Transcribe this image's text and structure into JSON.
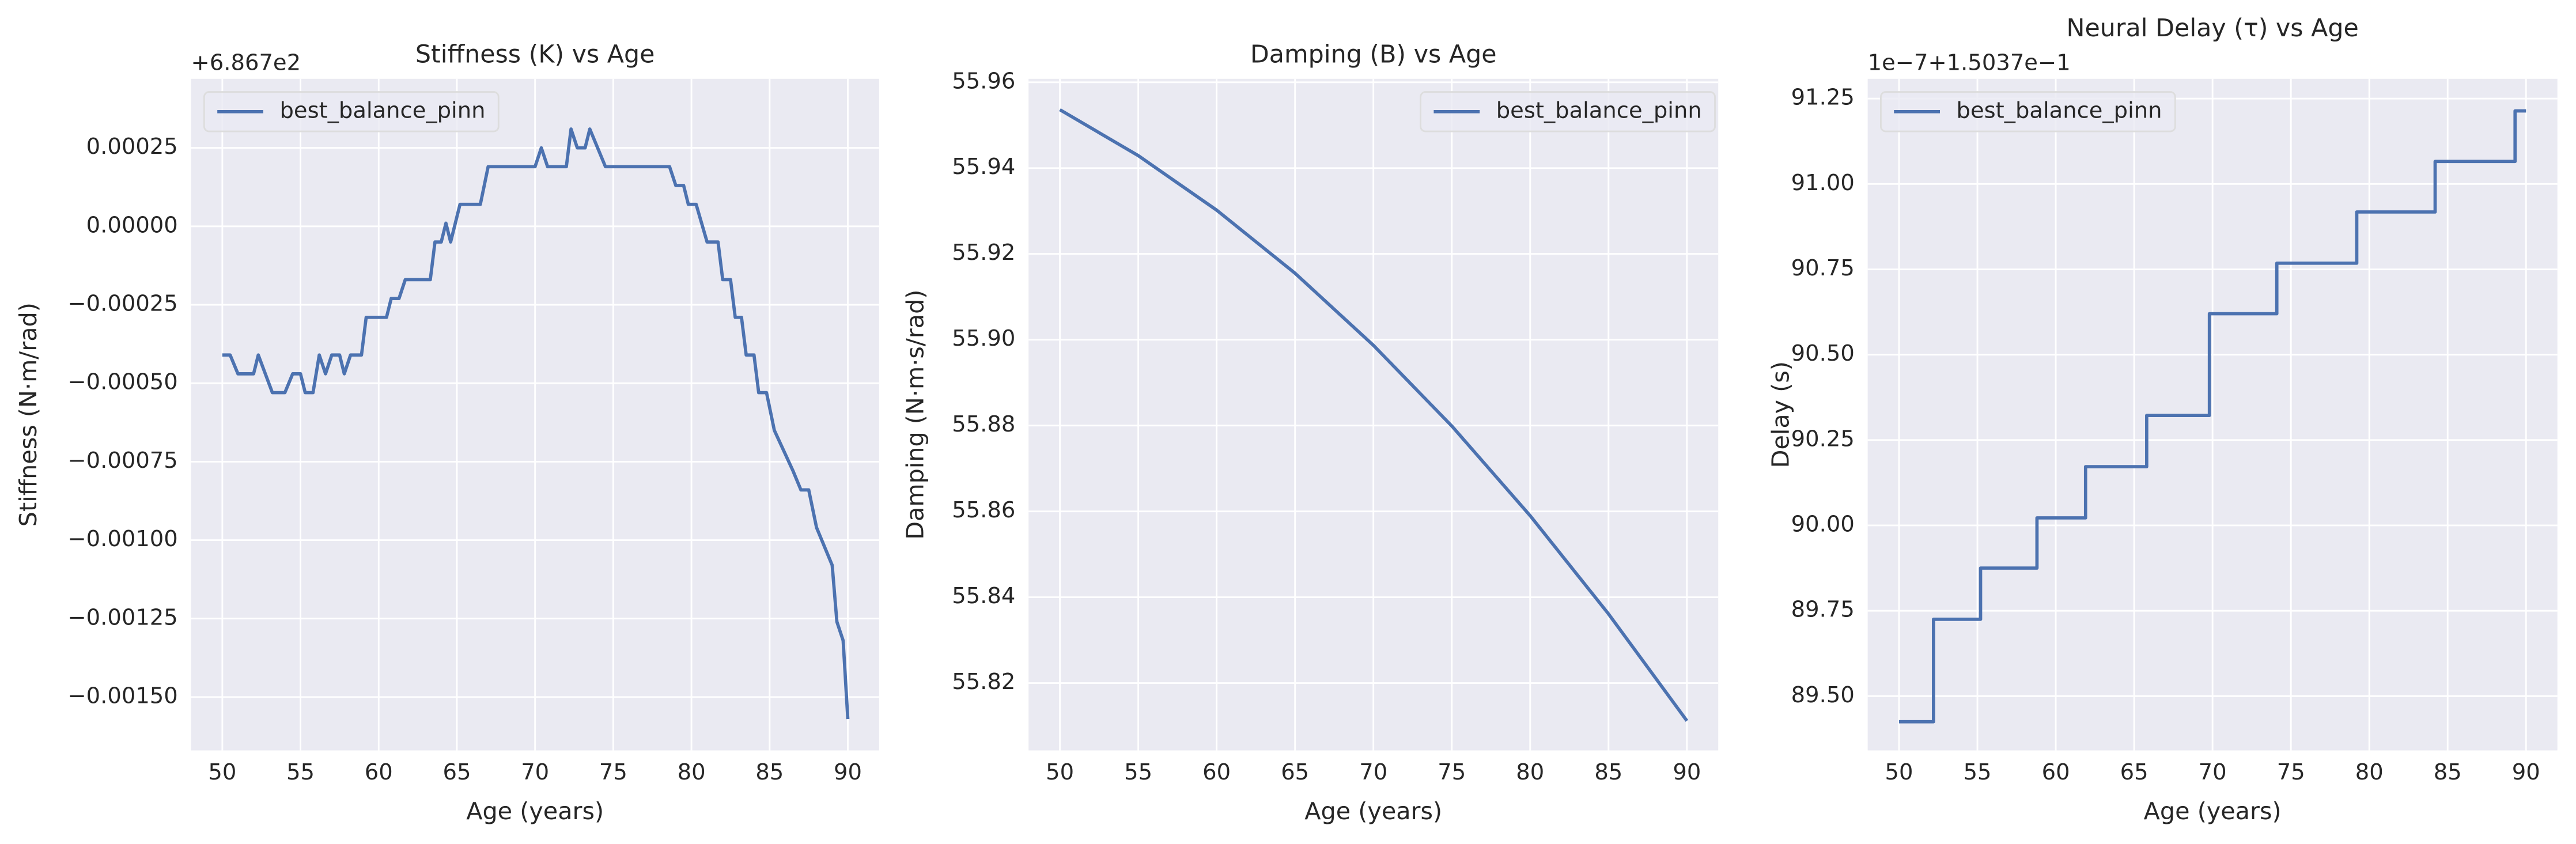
{
  "chart_data": [
    {
      "type": "line",
      "title": "Stiffness (K) vs Age",
      "xlabel": "Age (years)",
      "ylabel": "Stiffness (N·m/rad)",
      "offset_text": "+6.867e2",
      "x": [
        50,
        50.5,
        51,
        52,
        52.3,
        53.2,
        54,
        54.5,
        55,
        55.3,
        55.8,
        56.2,
        56.6,
        57,
        57.5,
        57.8,
        58.2,
        58.9,
        59.2,
        60.5,
        60.8,
        61.3,
        61.7,
        63.3,
        63.6,
        64,
        64.3,
        64.6,
        65.2,
        66.5,
        67,
        70,
        70.4,
        70.8,
        72,
        72.3,
        72.7,
        73.2,
        73.5,
        74.5,
        78.6,
        79,
        79.5,
        79.8,
        80.3,
        81,
        81.7,
        82,
        82.5,
        82.8,
        83.2,
        83.5,
        84,
        84.3,
        84.8,
        85.3,
        86.5,
        87,
        87.5,
        88,
        89,
        89.3,
        89.7,
        90
      ],
      "series": [
        {
          "name": "best_balance_pinn",
          "color": "#4c72b0",
          "values": [
            -0.00041,
            -0.00041,
            -0.00047,
            -0.00047,
            -0.00041,
            -0.00053,
            -0.00053,
            -0.00047,
            -0.00047,
            -0.00053,
            -0.00053,
            -0.00041,
            -0.00047,
            -0.00041,
            -0.00041,
            -0.00047,
            -0.00041,
            -0.00041,
            -0.00029,
            -0.00029,
            -0.00023,
            -0.00023,
            -0.00017,
            -0.00017,
            -5e-05,
            -5e-05,
            1e-05,
            -5e-05,
            7e-05,
            7e-05,
            0.00019,
            0.00019,
            0.00025,
            0.00019,
            0.00019,
            0.00031,
            0.00025,
            0.00025,
            0.00031,
            0.00019,
            0.00019,
            0.00013,
            0.00013,
            7e-05,
            7e-05,
            -5e-05,
            -5e-05,
            -0.00017,
            -0.00017,
            -0.00029,
            -0.00029,
            -0.00041,
            -0.00041,
            -0.00053,
            -0.00053,
            -0.00065,
            -0.00078,
            -0.00084,
            -0.00084,
            -0.00096,
            -0.00108,
            -0.00126,
            -0.00132,
            -0.00157
          ]
        }
      ],
      "xlim": [
        48,
        92
      ],
      "ylim": [
        -0.00167,
        0.00047
      ],
      "xticks": [
        50,
        55,
        60,
        65,
        70,
        75,
        80,
        85,
        90
      ],
      "yticks": [
        {
          "value": -0.0015,
          "label": "−0.00150"
        },
        {
          "value": -0.00125,
          "label": "−0.00125"
        },
        {
          "value": -0.001,
          "label": "−0.00100"
        },
        {
          "value": -0.00075,
          "label": "−0.00075"
        },
        {
          "value": -0.0005,
          "label": "−0.00050"
        },
        {
          "value": -0.00025,
          "label": "−0.00025"
        },
        {
          "value": 0,
          "label": "0.00000"
        },
        0.00025
      ],
      "grid": true,
      "legend": "upper left"
    },
    {
      "type": "line",
      "title": "Damping (B) vs Age",
      "xlabel": "Age (years)",
      "ylabel": "Damping (N·m·s/rad)",
      "x": [
        50,
        55,
        60,
        65,
        70,
        75,
        80,
        85,
        90
      ],
      "series": [
        {
          "name": "best_balance_pinn",
          "color": "#4c72b0",
          "values": [
            55.9536,
            55.9429,
            55.9302,
            55.9155,
            55.8987,
            55.8799,
            55.859,
            55.8361,
            55.8112
          ]
        }
      ],
      "xlim": [
        48,
        92
      ],
      "ylim": [
        55.8043,
        55.9608
      ],
      "xticks": [
        50,
        55,
        60,
        65,
        70,
        75,
        80,
        85,
        90
      ],
      "yticks": [
        55.82,
        55.84,
        55.86,
        55.88,
        {
          "value": 55.9,
          "label": "55.90"
        },
        55.92,
        55.94,
        55.96
      ],
      "grid": true,
      "legend": "upper right"
    },
    {
      "type": "line",
      "title": "Neural Delay (τ) vs Age",
      "xlabel": "Age (years)",
      "ylabel": "Delay (s)",
      "offset_text": "1e−7+1.5037e−1",
      "x": [
        50,
        52.2,
        52.2,
        55.2,
        55.2,
        58.8,
        58.8,
        61.9,
        61.9,
        65.8,
        65.8,
        69.8,
        69.8,
        74.1,
        74.1,
        79.2,
        79.2,
        84.2,
        84.2,
        89.3,
        89.3,
        90
      ],
      "series": [
        {
          "name": "best_balance_pinn",
          "color": "#4c72b0",
          "values": [
            89.425,
            89.425,
            89.725,
            89.725,
            89.875,
            89.875,
            90.022,
            90.022,
            90.172,
            90.172,
            90.322,
            90.322,
            90.62,
            90.62,
            90.768,
            90.768,
            90.918,
            90.918,
            91.066,
            91.066,
            91.214,
            91.214
          ]
        }
      ],
      "xlim": [
        48,
        92
      ],
      "ylim": [
        89.341,
        91.308
      ],
      "xticks": [
        50,
        55,
        60,
        65,
        70,
        75,
        80,
        85,
        90
      ],
      "yticks": [
        {
          "value": 89.5,
          "label": "89.50"
        },
        89.75,
        {
          "value": 90,
          "label": "90.00"
        },
        90.25,
        {
          "value": 90.5,
          "label": "90.50"
        },
        90.75,
        {
          "value": 91,
          "label": "91.00"
        },
        91.25
      ],
      "grid": true,
      "legend": "upper left"
    }
  ]
}
